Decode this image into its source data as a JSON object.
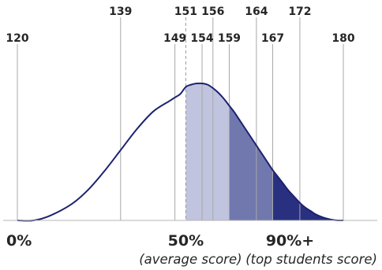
{
  "chart_data": {
    "type": "area",
    "title": "",
    "xlabel": "",
    "ylabel": "",
    "xlim": [
      120,
      180
    ],
    "grid": "vertical lines at score ticks",
    "score_ticks_upper": [
      "139",
      "151",
      "156",
      "164",
      "172"
    ],
    "score_ticks_lower": [
      "120",
      "149",
      "154",
      "159",
      "167",
      "180"
    ],
    "tick_values": [
      120,
      139,
      149,
      151,
      154,
      156,
      159,
      164,
      167,
      172,
      180
    ],
    "average_line": 151,
    "curve": {
      "x": [
        120,
        123,
        126,
        130,
        133,
        136,
        139,
        142,
        145,
        148,
        149,
        150,
        151,
        152,
        153,
        154,
        155,
        156,
        157,
        158,
        159,
        160,
        161,
        162,
        163,
        164,
        165,
        166,
        167,
        168,
        169,
        170,
        171,
        172,
        173,
        174,
        175,
        176,
        177,
        178,
        179,
        180
      ],
      "y": [
        0.0,
        0.0,
        0.04,
        0.14,
        0.26,
        0.42,
        0.6,
        0.78,
        0.93,
        1.02,
        1.05,
        1.08,
        1.14,
        1.16,
        1.17,
        1.17,
        1.16,
        1.13,
        1.09,
        1.04,
        0.98,
        0.92,
        0.85,
        0.78,
        0.71,
        0.64,
        0.57,
        0.5,
        0.43,
        0.37,
        0.31,
        0.25,
        0.2,
        0.15,
        0.11,
        0.08,
        0.05,
        0.03,
        0.015,
        0.005,
        0.0,
        0.0
      ]
    },
    "regions": [
      {
        "from": 151,
        "to": 159,
        "color": "#c1c4de"
      },
      {
        "from": 159,
        "to": 167,
        "color": "#7178ad"
      },
      {
        "from": 167,
        "to": 180,
        "color": "#28307f"
      }
    ],
    "line_color": "#1d2270",
    "percentile_labels": [
      {
        "label": "0%",
        "at": 120
      },
      {
        "label": "50%",
        "at": 151
      },
      {
        "label": "90%+",
        "at": 167
      }
    ],
    "notes": [
      {
        "text": "(average score)",
        "at": 151
      },
      {
        "text": "(top students score)",
        "at": 167
      }
    ]
  }
}
